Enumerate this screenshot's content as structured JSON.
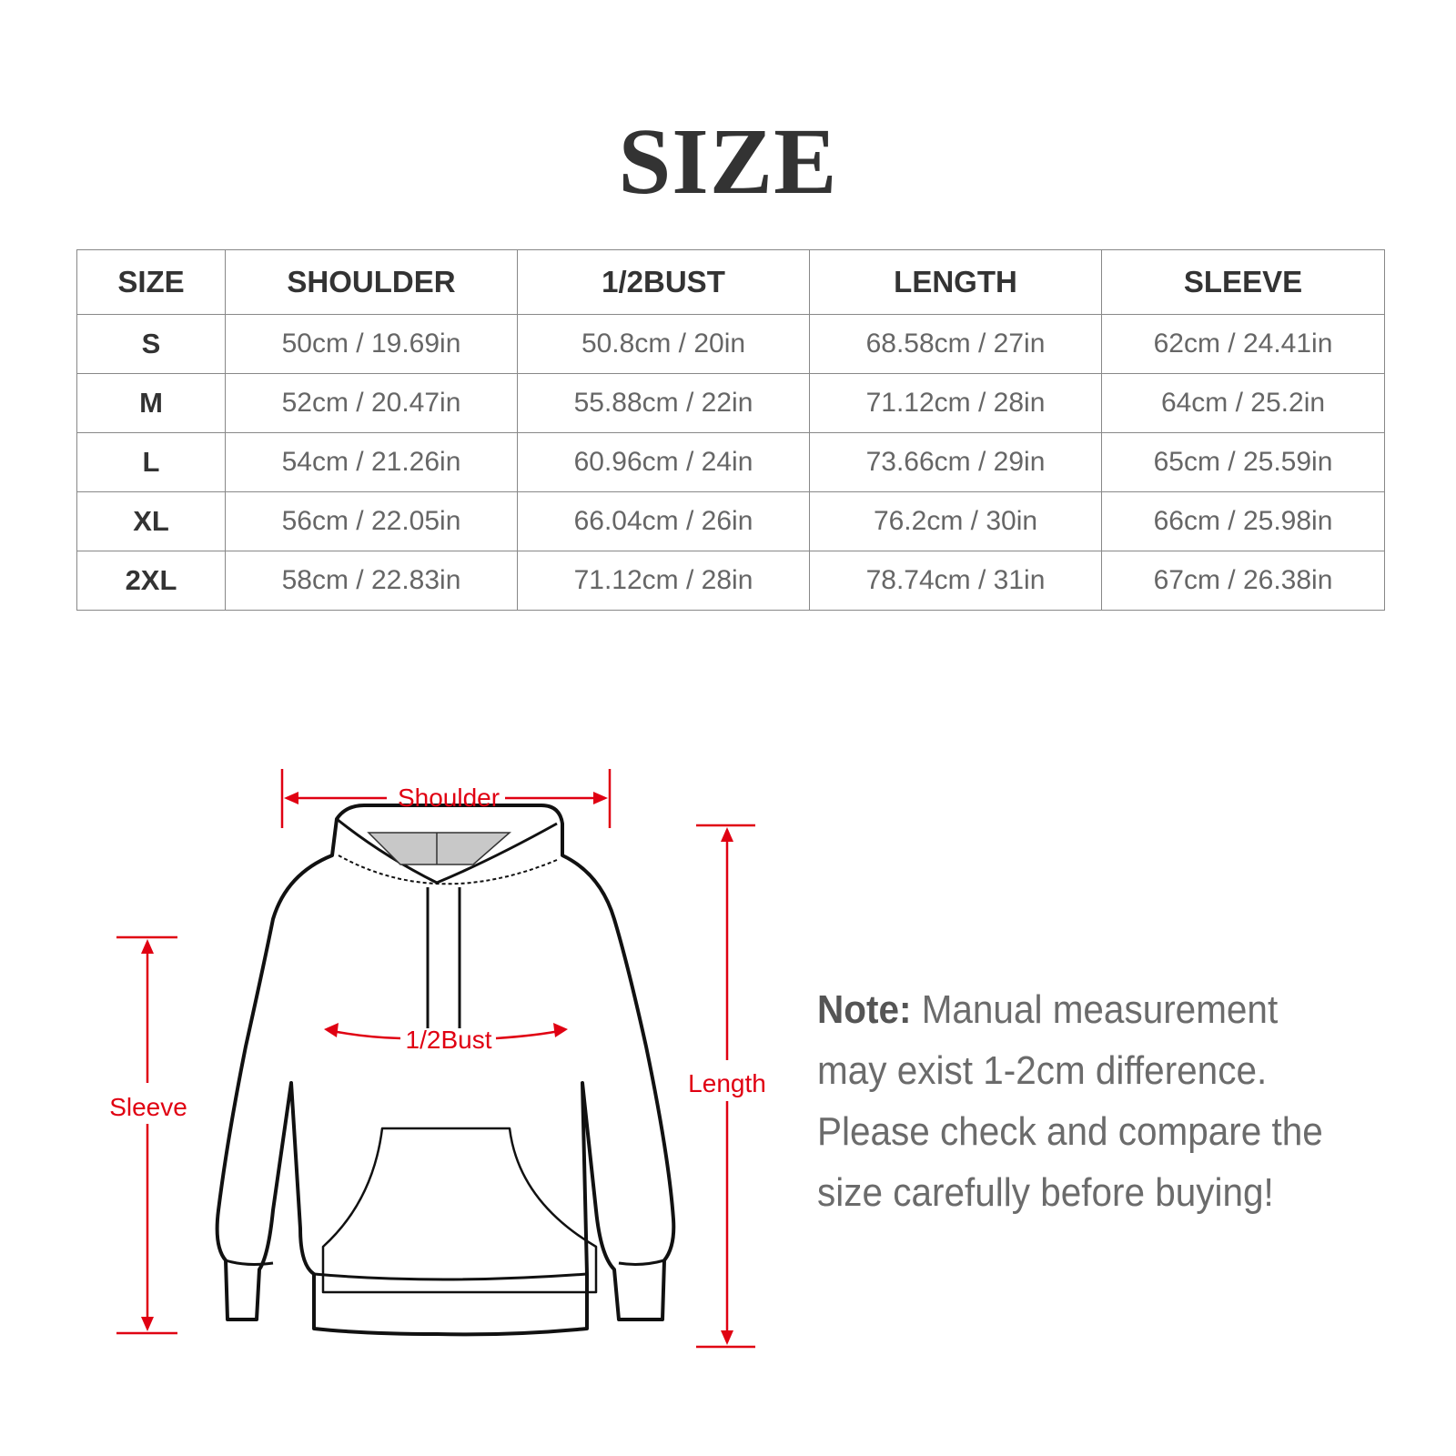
{
  "title": "SIZE",
  "table": {
    "headers": [
      "SIZE",
      "SHOULDER",
      "1/2BUST",
      "LENGTH",
      "SLEEVE"
    ],
    "rows": [
      [
        "S",
        "50cm / 19.69in",
        "50.8cm / 20in",
        "68.58cm / 27in",
        "62cm / 24.41in"
      ],
      [
        "M",
        "52cm / 20.47in",
        "55.88cm / 22in",
        "71.12cm / 28in",
        "64cm / 25.2in"
      ],
      [
        "L",
        "54cm / 21.26in",
        "60.96cm / 24in",
        "73.66cm / 29in",
        "65cm / 25.59in"
      ],
      [
        "XL",
        "56cm / 22.05in",
        "66.04cm / 26in",
        "76.2cm / 30in",
        "66cm / 25.98in"
      ],
      [
        "2XL",
        "58cm / 22.83in",
        "71.12cm / 28in",
        "78.74cm / 31in",
        "67cm / 26.38in"
      ]
    ]
  },
  "diagram": {
    "shoulder": "Shoulder",
    "bust": "1/2Bust",
    "sleeve": "Sleeve",
    "length": "Length",
    "accent_color": "#e00012"
  },
  "note": {
    "label": "Note:",
    "text": " Manual measurement may exist 1-2cm difference. Please check and compare the size carefully before buying!"
  }
}
